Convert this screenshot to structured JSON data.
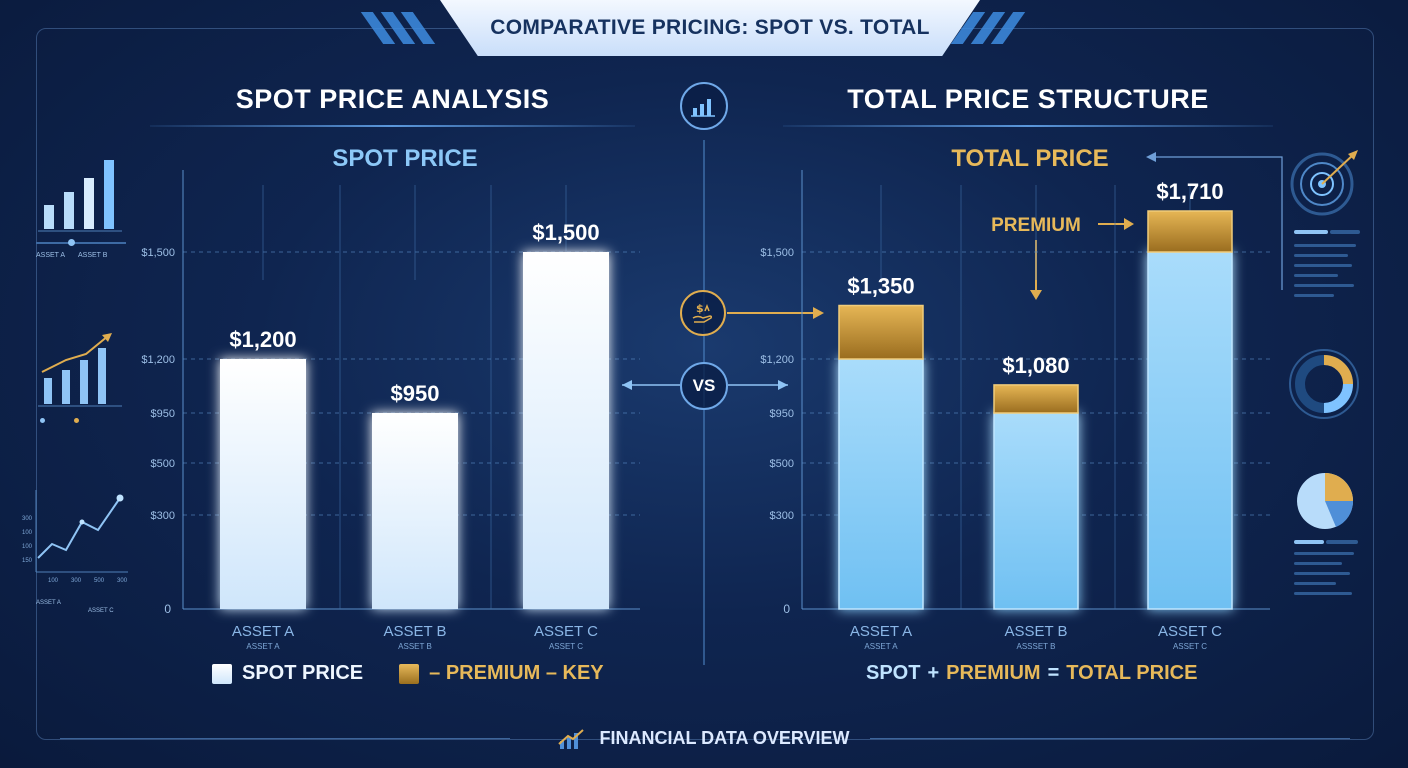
{
  "header": {
    "title": "COMPARATIVE PRICING: SPOT VS. TOTAL"
  },
  "left": {
    "section_title": "SPOT PRICE ANALYSIS",
    "chart_title": "SPOT PRICE"
  },
  "right": {
    "section_title": "TOTAL PRICE STRUCTURE",
    "chart_title": "TOTAL PRICE"
  },
  "center": {
    "vs_label": "VS"
  },
  "legend": {
    "spot_label": "SPOT PRICE",
    "premium_label": "– PREMIUM – KEY",
    "equation": {
      "spot": "SPOT",
      "plus": "+",
      "premium": "PREMIUM",
      "equals": "=",
      "total": "TOTAL PRICE"
    }
  },
  "footer": {
    "text": "FINANCIAL DATA OVERVIEW"
  },
  "side_widgets": {
    "left_legend_1": [
      "ASSET A",
      "ASSET B"
    ],
    "left_legend_3": [
      "ASSET A",
      "ASSET B",
      "ASSET C"
    ],
    "mini_axis": [
      "100",
      "300",
      "500",
      "300"
    ],
    "mini_y": [
      "300",
      "100",
      "100",
      "150"
    ]
  },
  "colors": {
    "spot_bar": "#eef6ff",
    "total_base": "#7cc8f5",
    "premium": "#c9962e",
    "premium_text": "#e7b95a",
    "accent": "#7fc3ff"
  },
  "chart_data": [
    {
      "type": "bar",
      "title": "SPOT PRICE",
      "categories": [
        "ASSET A",
        "ASSET B",
        "ASSET C"
      ],
      "category_sublabels": [
        "ASSET A",
        "ASSET B",
        "ASSET C"
      ],
      "y_tick_labels": [
        "0",
        "$300",
        "$500",
        "$950",
        "$1,200",
        "$1,500"
      ],
      "series": [
        {
          "values": [
            1200,
            950,
            1500
          ]
        }
      ],
      "data_labels": [
        "$1,200",
        "$950",
        "$1,500"
      ]
    },
    {
      "type": "bar",
      "stacked": true,
      "title": "TOTAL PRICE",
      "categories": [
        "ASSET A",
        "ASSET B",
        "ASSET C"
      ],
      "category_sublabels": [
        "ASSET A",
        "ASSSET B",
        "ASSET C"
      ],
      "y_tick_labels": [
        "0",
        "$300",
        "$500",
        "$950",
        "$1,200",
        "$1,500"
      ],
      "series": [
        {
          "name": "SPOT",
          "values": [
            1200,
            950,
            1500
          ]
        },
        {
          "name": "PREMIUM",
          "values": [
            150,
            130,
            210
          ]
        }
      ],
      "totals": [
        1350,
        1080,
        1710
      ],
      "data_labels": [
        "$1,350",
        "$1,080",
        "$1,710"
      ],
      "annotation": "PREMIUM"
    }
  ]
}
